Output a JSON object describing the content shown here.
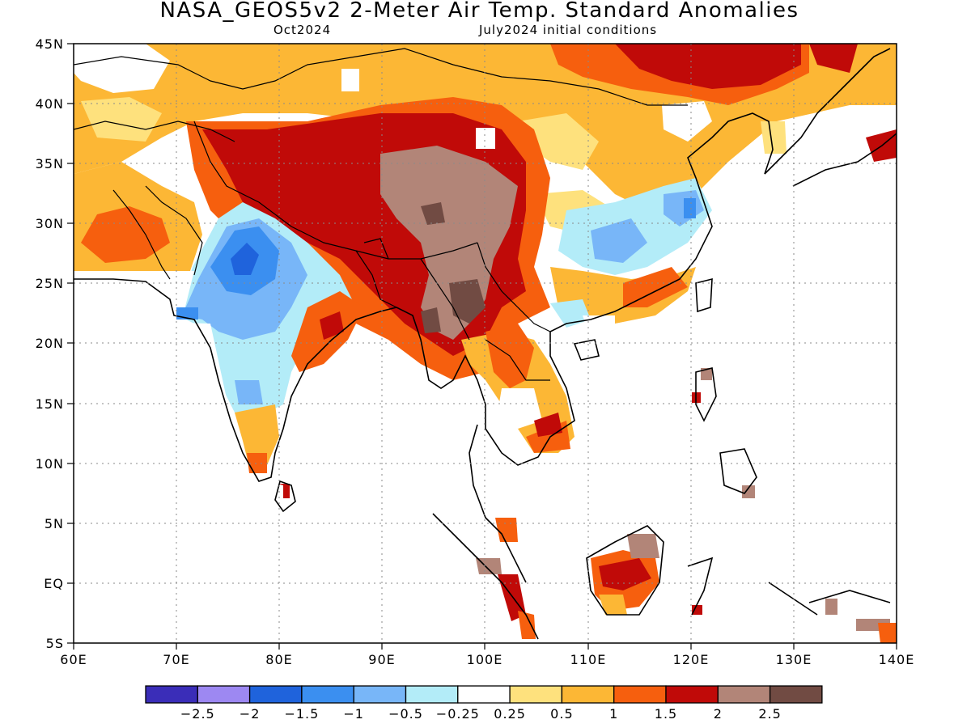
{
  "title": "NASA_GEOS5v2 2-Meter Air Temp. Standard Anomalies",
  "subtitle_left": "Oct2024",
  "subtitle_right": "July2024 initial conditions",
  "map": {
    "lon_range": [
      60,
      140
    ],
    "lat_range": [
      -5,
      45
    ],
    "lon_ticks": [
      "60E",
      "70E",
      "80E",
      "90E",
      "100E",
      "110E",
      "120E",
      "130E",
      "140E"
    ],
    "lat_ticks": [
      "45N",
      "40N",
      "35N",
      "30N",
      "25N",
      "20N",
      "15N",
      "10N",
      "5N",
      "EQ",
      "5S"
    ],
    "grid": "dotted"
  },
  "colorbar": {
    "colors": [
      "#3a2db8",
      "#9d88f2",
      "#1f63dc",
      "#3b8ff0",
      "#78b6f8",
      "#b3ecf8",
      "#ffffff",
      "#fee17d",
      "#fcb735",
      "#f65f0e",
      "#c00a08",
      "#b28578",
      "#714b43"
    ],
    "labels": [
      "-2.5",
      "-2",
      "-1.5",
      "-1",
      "-0.5",
      "-0.25",
      "0.25",
      "0.5",
      "1",
      "1.5",
      "2",
      "2.5"
    ]
  },
  "legend_colors": {
    "cold_strong": "#1f63dc",
    "cold": "#78b6f8",
    "neutral": "#ffffff",
    "warm": "#fcb735",
    "hot": "#c00a08",
    "extreme": "#714b43"
  }
}
